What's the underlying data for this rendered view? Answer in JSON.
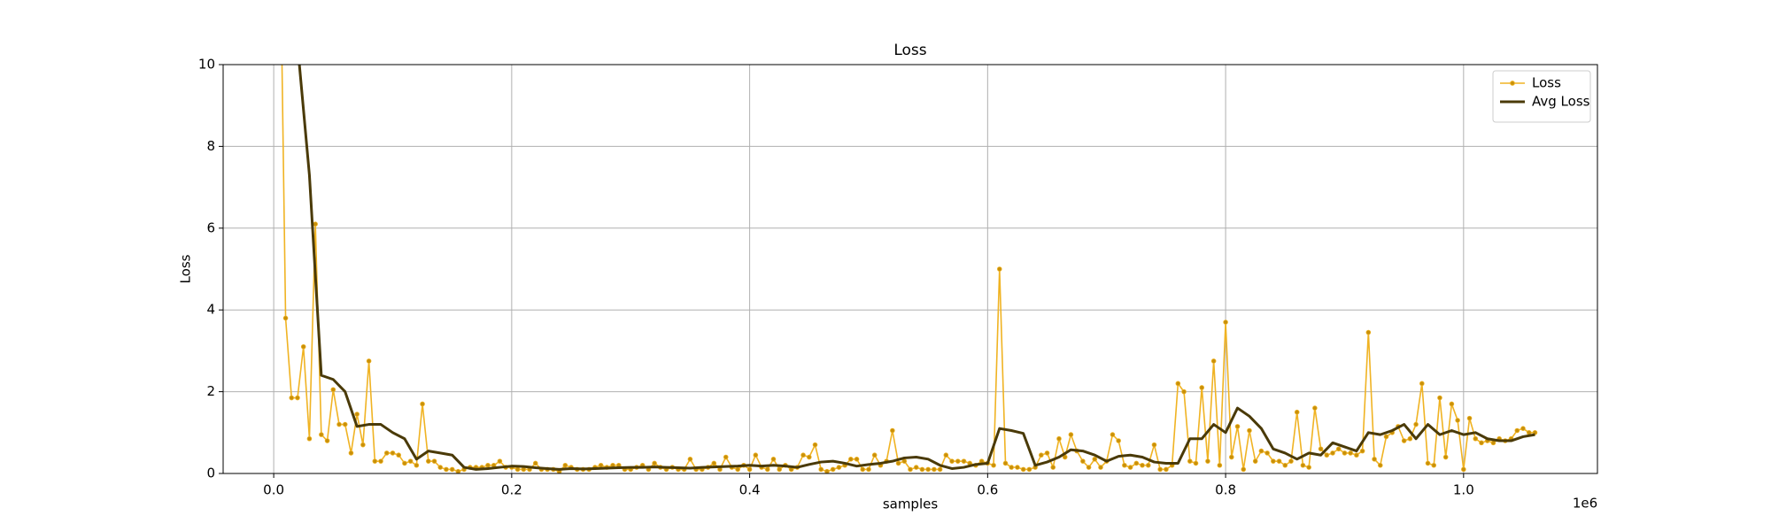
{
  "chart_data": {
    "type": "line",
    "title": "Loss",
    "xlabel": "samples",
    "ylabel": "Loss",
    "x_offset_label": "1e6",
    "xlim": [
      -42500,
      1112500
    ],
    "ylim": [
      0,
      10
    ],
    "xticks": [
      {
        "value": 0,
        "label": "0.0"
      },
      {
        "value": 200000,
        "label": "0.2"
      },
      {
        "value": 400000,
        "label": "0.4"
      },
      {
        "value": 600000,
        "label": "0.6"
      },
      {
        "value": 800000,
        "label": "0.8"
      },
      {
        "value": 1000000,
        "label": "1.0"
      }
    ],
    "yticks": [
      0,
      2,
      4,
      6,
      8,
      10
    ],
    "grid": true,
    "legend": "upper right",
    "series": [
      {
        "name": "Loss",
        "color": "#f0b323",
        "marker_color": "#c8900a",
        "x": [
          5000,
          10000,
          15000,
          20000,
          25000,
          30000,
          35000,
          40000,
          45000,
          50000,
          55000,
          60000,
          65000,
          70000,
          75000,
          80000,
          85000,
          90000,
          95000,
          100000,
          105000,
          110000,
          115000,
          120000,
          125000,
          130000,
          135000,
          140000,
          145000,
          150000,
          155000,
          160000,
          165000,
          170000,
          175000,
          180000,
          185000,
          190000,
          195000,
          200000,
          205000,
          210000,
          215000,
          220000,
          225000,
          230000,
          235000,
          240000,
          245000,
          250000,
          255000,
          260000,
          265000,
          270000,
          275000,
          280000,
          285000,
          290000,
          295000,
          300000,
          305000,
          310000,
          315000,
          320000,
          325000,
          330000,
          335000,
          340000,
          345000,
          350000,
          355000,
          360000,
          365000,
          370000,
          375000,
          380000,
          385000,
          390000,
          395000,
          400000,
          405000,
          410000,
          415000,
          420000,
          425000,
          430000,
          435000,
          440000,
          445000,
          450000,
          455000,
          460000,
          465000,
          470000,
          475000,
          480000,
          485000,
          490000,
          495000,
          500000,
          505000,
          510000,
          515000,
          520000,
          525000,
          530000,
          535000,
          540000,
          545000,
          550000,
          555000,
          560000,
          565000,
          570000,
          575000,
          580000,
          585000,
          590000,
          595000,
          600000,
          605000,
          610000,
          615000,
          620000,
          625000,
          630000,
          635000,
          640000,
          645000,
          650000,
          655000,
          660000,
          665000,
          670000,
          675000,
          680000,
          685000,
          690000,
          695000,
          700000,
          705000,
          710000,
          715000,
          720000,
          725000,
          730000,
          735000,
          740000,
          745000,
          750000,
          755000,
          760000,
          765000,
          770000,
          775000,
          780000,
          785000,
          790000,
          795000,
          800000,
          805000,
          810000,
          815000,
          820000,
          825000,
          830000,
          835000,
          840000,
          845000,
          850000,
          855000,
          860000,
          865000,
          870000,
          875000,
          880000,
          885000,
          890000,
          895000,
          900000,
          905000,
          910000,
          915000,
          920000,
          925000,
          930000,
          935000,
          940000,
          945000,
          950000,
          955000,
          960000,
          965000,
          970000,
          975000,
          980000,
          985000,
          990000,
          995000,
          1000000,
          1005000,
          1010000,
          1015000,
          1020000,
          1025000,
          1030000,
          1035000,
          1040000,
          1045000,
          1050000,
          1055000,
          1060000
        ],
        "values": [
          14,
          3.8,
          1.85,
          1.85,
          3.1,
          0.85,
          6.1,
          0.95,
          0.8,
          2.05,
          1.2,
          1.2,
          0.5,
          1.45,
          0.7,
          2.75,
          0.3,
          0.3,
          0.5,
          0.5,
          0.45,
          0.25,
          0.3,
          0.2,
          1.7,
          0.3,
          0.3,
          0.15,
          0.1,
          0.1,
          0.05,
          0.1,
          0.15,
          0.15,
          0.15,
          0.2,
          0.2,
          0.3,
          0.15,
          0.15,
          0.1,
          0.1,
          0.1,
          0.25,
          0.1,
          0.1,
          0.1,
          0.05,
          0.2,
          0.15,
          0.1,
          0.1,
          0.1,
          0.15,
          0.2,
          0.15,
          0.2,
          0.2,
          0.1,
          0.1,
          0.15,
          0.2,
          0.1,
          0.25,
          0.15,
          0.1,
          0.15,
          0.1,
          0.1,
          0.35,
          0.1,
          0.1,
          0.15,
          0.25,
          0.1,
          0.4,
          0.15,
          0.1,
          0.2,
          0.1,
          0.45,
          0.15,
          0.1,
          0.35,
          0.1,
          0.2,
          0.1,
          0.15,
          0.45,
          0.4,
          0.7,
          0.1,
          0.05,
          0.1,
          0.15,
          0.2,
          0.35,
          0.35,
          0.1,
          0.1,
          0.45,
          0.2,
          0.3,
          1.05,
          0.25,
          0.3,
          0.1,
          0.15,
          0.1,
          0.1,
          0.1,
          0.1,
          0.45,
          0.3,
          0.3,
          0.3,
          0.25,
          0.2,
          0.3,
          0.25,
          0.2,
          5.0,
          0.25,
          0.15,
          0.15,
          0.1,
          0.1,
          0.15,
          0.45,
          0.5,
          0.15,
          0.85,
          0.4,
          0.95,
          0.55,
          0.3,
          0.15,
          0.35,
          0.15,
          0.3,
          0.95,
          0.8,
          0.2,
          0.15,
          0.25,
          0.2,
          0.2,
          0.7,
          0.1,
          0.1,
          0.2,
          2.2,
          2.0,
          0.3,
          0.25,
          2.1,
          0.3,
          2.75,
          0.2,
          3.7,
          0.4,
          1.15,
          0.1,
          1.05,
          0.3,
          0.55,
          0.5,
          0.3,
          0.3,
          0.2,
          0.3,
          1.5,
          0.2,
          0.15,
          1.6,
          0.6,
          0.45,
          0.5,
          0.6,
          0.5,
          0.5,
          0.45,
          0.55,
          3.45,
          0.35,
          0.2,
          0.9,
          1.0,
          1.15,
          0.8,
          0.85,
          1.2,
          2.2,
          0.25,
          0.2,
          1.85,
          0.4,
          1.7,
          1.3,
          0.1,
          1.35,
          0.85,
          0.75,
          0.8,
          0.75,
          0.85,
          0.8,
          0.85,
          1.05,
          1.1,
          1.0,
          1.0
        ]
      },
      {
        "name": "Avg Loss",
        "color": "#4a3a08",
        "x": [
          20000,
          30000,
          40000,
          50000,
          60000,
          70000,
          80000,
          90000,
          100000,
          110000,
          120000,
          130000,
          140000,
          150000,
          160000,
          170000,
          180000,
          190000,
          200000,
          210000,
          220000,
          230000,
          240000,
          250000,
          260000,
          270000,
          280000,
          290000,
          300000,
          310000,
          320000,
          330000,
          340000,
          350000,
          360000,
          370000,
          380000,
          390000,
          400000,
          410000,
          420000,
          430000,
          440000,
          450000,
          460000,
          470000,
          480000,
          490000,
          500000,
          510000,
          520000,
          530000,
          540000,
          550000,
          560000,
          570000,
          580000,
          590000,
          600000,
          610000,
          620000,
          630000,
          640000,
          650000,
          660000,
          670000,
          680000,
          690000,
          700000,
          710000,
          720000,
          730000,
          740000,
          750000,
          760000,
          770000,
          780000,
          790000,
          800000,
          810000,
          820000,
          830000,
          840000,
          850000,
          860000,
          870000,
          880000,
          890000,
          900000,
          910000,
          920000,
          930000,
          940000,
          950000,
          960000,
          970000,
          980000,
          990000,
          1000000,
          1010000,
          1020000,
          1030000,
          1040000,
          1050000,
          1060000
        ],
        "values": [
          10.5,
          7.3,
          2.4,
          2.3,
          2.0,
          1.15,
          1.2,
          1.2,
          1.0,
          0.85,
          0.35,
          0.55,
          0.5,
          0.45,
          0.15,
          0.1,
          0.12,
          0.15,
          0.18,
          0.17,
          0.14,
          0.12,
          0.1,
          0.12,
          0.11,
          0.12,
          0.13,
          0.14,
          0.15,
          0.15,
          0.16,
          0.15,
          0.14,
          0.13,
          0.15,
          0.16,
          0.17,
          0.18,
          0.2,
          0.18,
          0.2,
          0.18,
          0.15,
          0.22,
          0.28,
          0.3,
          0.25,
          0.18,
          0.22,
          0.25,
          0.3,
          0.38,
          0.4,
          0.35,
          0.2,
          0.12,
          0.15,
          0.22,
          0.25,
          1.1,
          1.05,
          0.98,
          0.2,
          0.28,
          0.4,
          0.58,
          0.55,
          0.45,
          0.3,
          0.42,
          0.45,
          0.4,
          0.28,
          0.25,
          0.25,
          0.85,
          0.85,
          1.2,
          1.0,
          1.6,
          1.4,
          1.1,
          0.6,
          0.5,
          0.35,
          0.5,
          0.45,
          0.75,
          0.65,
          0.55,
          1.0,
          0.95,
          1.05,
          1.2,
          0.85,
          1.2,
          0.95,
          1.05,
          0.95,
          1.0,
          0.85,
          0.8,
          0.8,
          0.9,
          0.95
        ]
      }
    ]
  }
}
